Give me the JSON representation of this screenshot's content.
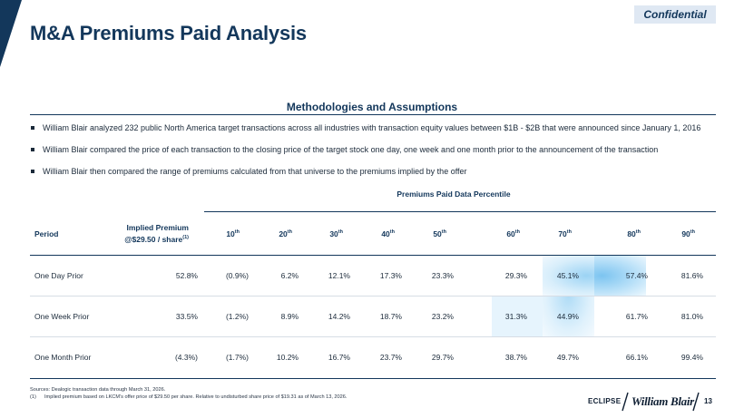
{
  "header": {
    "title": "M&A Premiums Paid Analysis",
    "confidential_label": "Confidential"
  },
  "methodology": {
    "heading": "Methodologies and Assumptions",
    "bullets": [
      "William Blair analyzed 232 public North America target transactions across all industries with transaction equity values between $1B - $2B that were announced since January 1, 2016",
      "William Blair compared the price of each transaction to the closing price of the target stock one day, one week and one month prior to the announcement of the transaction",
      "William Blair then compared the range of premiums calculated from that universe to the premiums implied by the offer"
    ]
  },
  "table": {
    "percentile_heading": "Premiums Paid Data Percentile",
    "period_header": "Period",
    "implied_header_line1": "Implied Premium",
    "implied_header_line2": "@$29.50 / share",
    "implied_header_footnote": "(1)",
    "columns": [
      {
        "num": "10",
        "suffix": "th"
      },
      {
        "num": "20",
        "suffix": "th"
      },
      {
        "num": "30",
        "suffix": "th"
      },
      {
        "num": "40",
        "suffix": "th"
      },
      {
        "num": "50",
        "suffix": "th"
      },
      {
        "num": "60",
        "suffix": "th"
      },
      {
        "num": "70",
        "suffix": "th"
      },
      {
        "num": "80",
        "suffix": "th"
      },
      {
        "num": "90",
        "suffix": "th"
      }
    ],
    "rows": [
      {
        "period": "One Day Prior",
        "implied": "52.8%",
        "values": [
          "(0.9%)",
          "6.2%",
          "12.1%",
          "17.3%",
          "23.3%",
          "29.3%",
          "45.1%",
          "57.4%",
          "81.6%"
        ]
      },
      {
        "period": "One Week Prior",
        "implied": "33.5%",
        "values": [
          "(1.2%)",
          "8.9%",
          "14.2%",
          "18.7%",
          "23.2%",
          "31.3%",
          "44.9%",
          "61.7%",
          "81.0%"
        ]
      },
      {
        "period": "One Month Prior",
        "implied": "(4.3%)",
        "values": [
          "(1.7%)",
          "10.2%",
          "16.7%",
          "23.7%",
          "29.7%",
          "38.7%",
          "49.7%",
          "66.1%",
          "99.4%"
        ]
      }
    ],
    "highlight_color": "#7cc4f0"
  },
  "footer": {
    "sources": "Sources: Dealogic transaction data through March 31, 2026.",
    "footnote_num": "(1)",
    "footnote_text": "Implied premium based on LKCM’s offer price of $29.50 per share. Relative to undisturbed share price of $19.31 as of March 13, 2026.",
    "logo_eclipse": "ECLIPSE",
    "logo_william_blair": "William Blair",
    "page_number": "13"
  },
  "colors": {
    "navy": "#13375b",
    "confidential_bg": "#dfe8f3"
  }
}
